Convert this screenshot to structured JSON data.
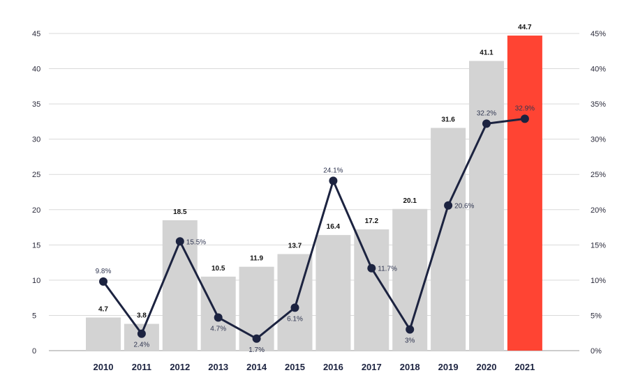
{
  "chart_data": {
    "type": "bar",
    "title": "",
    "xlabel": "",
    "ylabel": "",
    "categories": [
      "2010",
      "2011",
      "2012",
      "2013",
      "2014",
      "2015",
      "2016",
      "2017",
      "2018",
      "2019",
      "2020",
      "2021"
    ],
    "series": [
      {
        "type": "bar",
        "values": [
          4.7,
          3.8,
          18.5,
          10.5,
          11.9,
          13.7,
          16.4,
          17.2,
          20.1,
          31.6,
          41.1,
          44.7
        ],
        "labels": [
          "4.7",
          "3.8",
          "18.5",
          "10.5",
          "11.9",
          "13.7",
          "16.4",
          "17.2",
          "20.1",
          "31.6",
          "41.1",
          "44.7"
        ],
        "color": "#d3d3d3",
        "highlight_index": 11,
        "highlight_color": "#ff4433"
      },
      {
        "type": "line",
        "axis": "right",
        "values": [
          9.8,
          2.4,
          15.5,
          4.7,
          1.7,
          6.1,
          24.1,
          11.7,
          3.0,
          20.6,
          32.2,
          32.9
        ],
        "labels": [
          "9.8%",
          "2.4%",
          "15.5%",
          "4.7%",
          "1.7%",
          "6.1%",
          "24.1%",
          "11.7%",
          "3%",
          "20.6%",
          "32.2%",
          "32.9%"
        ],
        "color": "#1c2340"
      }
    ],
    "y_left": {
      "min": 0,
      "max": 45,
      "ticks": [
        "0",
        "5",
        "10",
        "15",
        "20",
        "25",
        "30",
        "35",
        "40",
        "45"
      ]
    },
    "y_right": {
      "min": 0,
      "max": 45,
      "ticks": [
        "0%",
        "5%",
        "10%",
        "15%",
        "20%",
        "25%",
        "30%",
        "35%",
        "40%",
        "45%"
      ]
    },
    "grid": true,
    "legend": "none",
    "colors": {
      "grid": "#d9d9d9",
      "axis": "#9a9a9a"
    }
  }
}
